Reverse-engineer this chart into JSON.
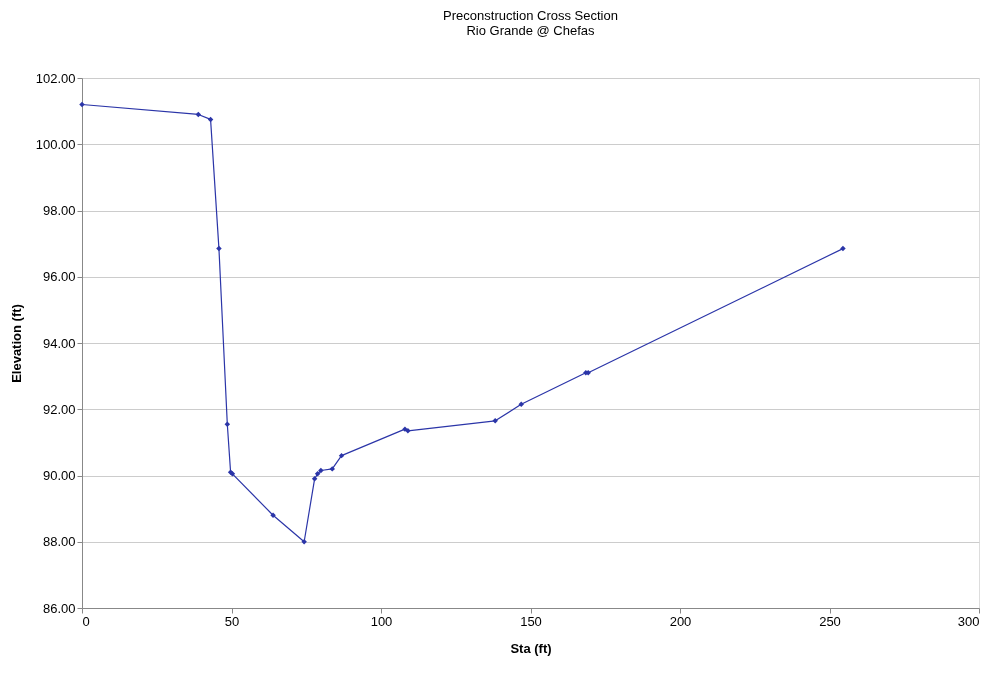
{
  "chart_data": {
    "type": "line",
    "title": "Preconstruction Cross Section",
    "subtitle": "Rio Grande @ Chefas",
    "xlabel": "Sta (ft)",
    "ylabel": "Elevation (ft)",
    "x": [
      0,
      38.9,
      43,
      45.8,
      48.6,
      49.7,
      50.3,
      63.9,
      74.3,
      77.8,
      78.8,
      79.9,
      83.7,
      86.8,
      108,
      109,
      138.2,
      146.9,
      168.5,
      169.3,
      254.5
    ],
    "series": [
      {
        "color": "#2b35a8",
        "values": [
          101.2,
          100.9,
          100.75,
          96.85,
          91.55,
          90.1,
          90.05,
          88.8,
          88.0,
          89.9,
          90.05,
          90.15,
          90.2,
          90.6,
          91.4,
          91.35,
          91.65,
          92.15,
          93.1,
          93.1,
          96.85
        ]
      }
    ],
    "xlim": [
      0,
      300
    ],
    "xticks": [
      0,
      50,
      100,
      150,
      200,
      250,
      300
    ],
    "ylim": [
      86,
      102
    ],
    "yticks": [
      {
        "value": 86,
        "label": "86.00"
      },
      {
        "value": 88,
        "label": "88.00"
      },
      {
        "value": 90,
        "label": "90.00"
      },
      {
        "value": 92,
        "label": "92.00"
      },
      {
        "value": 94,
        "label": "94.00"
      },
      {
        "value": 96,
        "label": "96.00"
      },
      {
        "value": 98,
        "label": "98.00"
      },
      {
        "value": 100,
        "label": "100.00"
      },
      {
        "value": 102,
        "label": "102.00"
      }
    ],
    "grid": "y",
    "marker": "diamond",
    "line_style": "solid"
  }
}
